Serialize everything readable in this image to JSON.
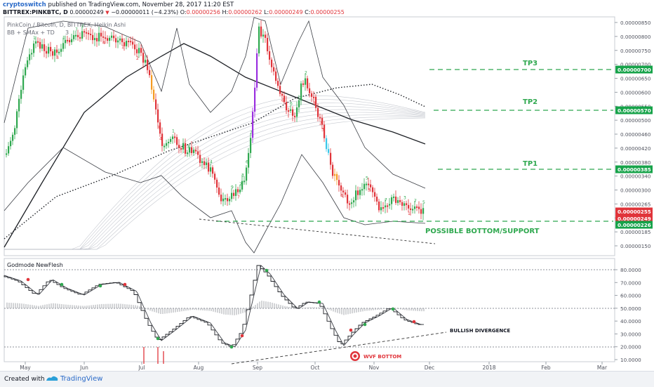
{
  "header": {
    "author": "cryptoswitch",
    "published_text": "published on TradingView.com, November 28, 2017 11:20 EST",
    "symbol": "BITTREX:PINKBTC, D",
    "last_price": "0.00000249",
    "change": "−0.00000011 (−4.23%)",
    "open_label": "O:",
    "open": "0.00000256",
    "high_label": "H:",
    "high": "0.00000262",
    "low_label": "L:",
    "low": "0.00000249",
    "close_label": "C:",
    "close": "0.00000255"
  },
  "main_pane": {
    "title": "PinkCoin / Bitcoin, D, BITTREX, Heikin Ashi",
    "indicator": "BB + SMAx + TD",
    "indicator_value": "3",
    "price_ticks": [
      "0.00000850",
      "0.00000800",
      "0.00000750",
      "0.00000700",
      "0.00000650",
      "0.00000600",
      "0.00000550",
      "0.00000500",
      "0.00000460",
      "0.00000420",
      "0.00000380",
      "0.00000340",
      "0.00000300",
      "0.00000265",
      "0.00000225",
      "0.00000185",
      "0.00000150"
    ],
    "price_badges": [
      {
        "value": "0.00000700",
        "color": "#17a34a"
      },
      {
        "value": "0.00000570",
        "color": "#17a34a"
      },
      {
        "value": "0.00000385",
        "color": "#17a34a"
      },
      {
        "value": "0.00000255",
        "color": "#e0343a"
      },
      {
        "value": "0.00000249",
        "color": "#e0343a"
      },
      {
        "value": "0.00000226",
        "color": "#17a34a"
      }
    ],
    "annotations": {
      "tp3": "TP3",
      "tp2": "TP2",
      "tp1": "TP1",
      "support": "POSSIBLE BOTTOM/SUPPORT"
    }
  },
  "indicator_pane": {
    "title": "Godmode NewFlesh",
    "ticks": [
      "80.0000",
      "70.0000",
      "60.0000",
      "50.0000",
      "40.0000",
      "30.0000",
      "20.0000",
      "10.0000"
    ],
    "annotations": {
      "bullish_divergence": "BULLISH DIVERGENCE",
      "wvf_bottom": "WVF BOTTOM"
    }
  },
  "time_axis": [
    "May",
    "Jun",
    "Jul",
    "Aug",
    "Sep",
    "Oct",
    "Nov",
    "Dec",
    "2018",
    "Feb",
    "Mar"
  ],
  "footer": {
    "created_with": "Created with",
    "brand": "TradingView"
  },
  "colors": {
    "up": "#2fa84f",
    "down": "#e0343a",
    "target_line": "#2fa84f",
    "badge_green": "#17a34a",
    "badge_red": "#e0343a"
  },
  "chart_data": {
    "type": "candlestick",
    "title": "PinkCoin / Bitcoin, D, BITTREX, Heikin Ashi",
    "price_levels": {
      "TP3": 7e-06,
      "TP2": 5.7e-06,
      "TP1": 3.85e-06,
      "support": 2.26e-06
    },
    "ylim": [
      1.3e-06,
      8.7e-06
    ],
    "oscillator_ylim": [
      7,
      87
    ],
    "oscillator_reference_lines": [
      80,
      50,
      20
    ],
    "price_series": {
      "months": [
        "May",
        "Jun",
        "Jul",
        "Aug",
        "Sep",
        "Oct",
        "Nov"
      ],
      "approx_close": [
        7.6e-06,
        7.8e-06,
        5.2e-06,
        3.6e-06,
        6.6e-06,
        3.2e-06,
        2.5e-06
      ]
    },
    "oscillator_series": {
      "months": [
        "May",
        "Jun",
        "Jul",
        "Aug",
        "Sep",
        "Oct",
        "Nov"
      ],
      "approx_value": [
        55,
        60,
        45,
        18,
        82,
        22,
        40
      ]
    }
  }
}
